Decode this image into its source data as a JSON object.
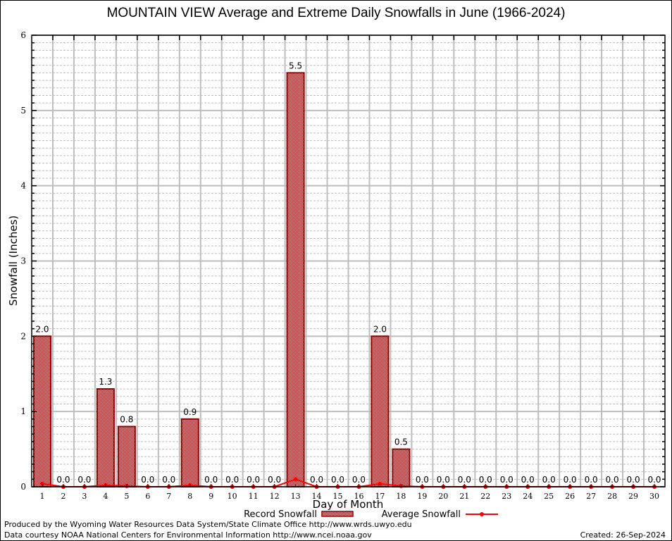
{
  "chart_data": {
    "type": "bar",
    "title": "MOUNTAIN VIEW Average and Extreme Daily Snowfalls in June (1966-2024)",
    "xlabel": "Day of Month",
    "ylabel": "Snowfall (Inches)",
    "ylim": [
      0,
      6
    ],
    "yticks": [
      "0",
      "1",
      "2",
      "3",
      "4",
      "5",
      "6"
    ],
    "grid": true,
    "categories": [
      "1",
      "2",
      "3",
      "4",
      "5",
      "6",
      "7",
      "8",
      "9",
      "10",
      "11",
      "12",
      "13",
      "14",
      "15",
      "16",
      "17",
      "18",
      "19",
      "20",
      "21",
      "22",
      "23",
      "24",
      "25",
      "26",
      "27",
      "28",
      "29",
      "30"
    ],
    "series": [
      {
        "name": "Record Snowfall",
        "kind": "bar",
        "values": [
          2.0,
          0.0,
          0.0,
          1.3,
          0.8,
          0.0,
          0.0,
          0.9,
          0.0,
          0.0,
          0.0,
          0.0,
          5.5,
          0.0,
          0.0,
          0.0,
          2.0,
          0.5,
          0.0,
          0.0,
          0.0,
          0.0,
          0.0,
          0.0,
          0.0,
          0.0,
          0.0,
          0.0,
          0.0,
          0.0
        ],
        "labels": [
          "2.0",
          "0.0",
          "0.0",
          "1.3",
          "0.8",
          "0.0",
          "0.0",
          "0.9",
          "0.0",
          "0.0",
          "0.0",
          "0.0",
          "5.5",
          "0.0",
          "0.0",
          "0.0",
          "2.0",
          "0.5",
          "0.0",
          "0.0",
          "0.0",
          "0.0",
          "0.0",
          "0.0",
          "0.0",
          "0.0",
          "0.0",
          "0.0",
          "0.0",
          "0.0"
        ],
        "color": "#8b0000"
      },
      {
        "name": "Average Snowfall",
        "kind": "line",
        "values": [
          0.04,
          0.0,
          0.0,
          0.02,
          0.01,
          0.0,
          0.0,
          0.02,
          0.0,
          0.0,
          0.0,
          0.0,
          0.1,
          0.0,
          0.0,
          0.0,
          0.04,
          0.01,
          0.0,
          0.0,
          0.0,
          0.0,
          0.0,
          0.0,
          0.0,
          0.0,
          0.0,
          0.0,
          0.0,
          0.0
        ],
        "color": "#ff0000"
      }
    ],
    "legend": {
      "placement": "bottom-center",
      "entries": [
        "Record Snowfall",
        "Average Snowfall"
      ]
    }
  },
  "footer": {
    "credit_line1": "Produced by the Wyoming Water Resources Data System/State Climate Office http://www.wrds.uwyo.edu",
    "credit_line2": "Data courtesy NOAA National Centers for Environmental Information http://www.ncei.noaa.gov",
    "created": "Created: 26-Sep-2024"
  }
}
